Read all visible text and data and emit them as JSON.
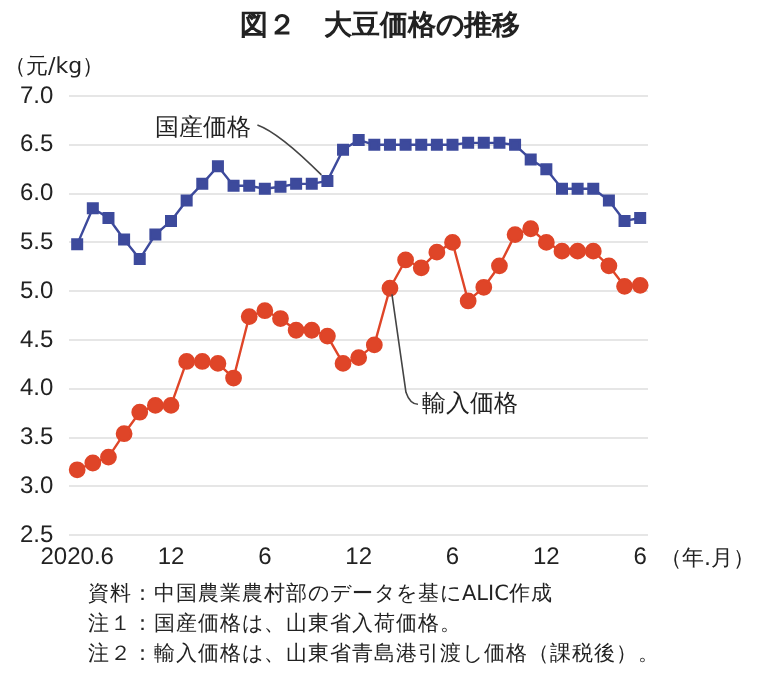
{
  "chart_data": {
    "type": "line",
    "title": "図２　大豆価格の推移",
    "ylabel": "（元/kg）",
    "xlabel": "（年.月）",
    "categories": [
      "2020.6",
      null,
      null,
      null,
      null,
      null,
      "12",
      null,
      null,
      null,
      null,
      null,
      "6",
      null,
      null,
      null,
      null,
      null,
      "12",
      null,
      null,
      null,
      null,
      null,
      "6",
      null,
      null,
      null,
      null,
      null,
      "12",
      null,
      null,
      null,
      null,
      null,
      "6"
    ],
    "series": [
      {
        "name": "国産価格",
        "color": "#3d4a9c",
        "marker": "square",
        "values": [
          5.48,
          5.85,
          5.75,
          5.53,
          5.33,
          5.58,
          5.72,
          5.93,
          6.1,
          6.28,
          6.08,
          6.08,
          6.05,
          6.07,
          6.1,
          6.1,
          6.13,
          6.45,
          6.55,
          6.5,
          6.5,
          6.5,
          6.5,
          6.5,
          6.5,
          6.52,
          6.52,
          6.52,
          6.5,
          6.35,
          6.25,
          6.05,
          6.05,
          6.05,
          5.93,
          5.72,
          5.75
        ]
      },
      {
        "name": "輸入価格",
        "color": "#df4528",
        "marker": "circle",
        "values": [
          3.17,
          3.24,
          3.3,
          3.54,
          3.76,
          3.83,
          3.83,
          4.28,
          4.28,
          4.26,
          4.11,
          4.74,
          4.8,
          4.72,
          4.6,
          4.6,
          4.54,
          4.26,
          4.32,
          4.45,
          5.03,
          5.32,
          5.24,
          5.4,
          5.5,
          4.9,
          5.04,
          5.26,
          5.58,
          5.64,
          5.5,
          5.41,
          5.41,
          5.41,
          5.26,
          5.05,
          5.06
        ]
      }
    ],
    "ylim": [
      2.5,
      7.0
    ],
    "yticks": [
      2.5,
      {
        "value": 3,
        "label": "3.0"
      },
      3.5,
      {
        "value": 4,
        "label": "4.0"
      },
      4.5,
      {
        "value": 5,
        "label": "5.0"
      },
      5.5,
      {
        "value": 6,
        "label": "6.0"
      },
      6.5,
      {
        "value": 7,
        "label": "7.0"
      }
    ],
    "grid": "y",
    "legend": false,
    "annotations": [
      "資料：中国農業農村部のデータを基にALIC作成",
      "注１：国産価格は、山東省入荷価格。",
      "注２：輸入価格は、山東省青島港引渡し価格（課税後）。"
    ]
  }
}
